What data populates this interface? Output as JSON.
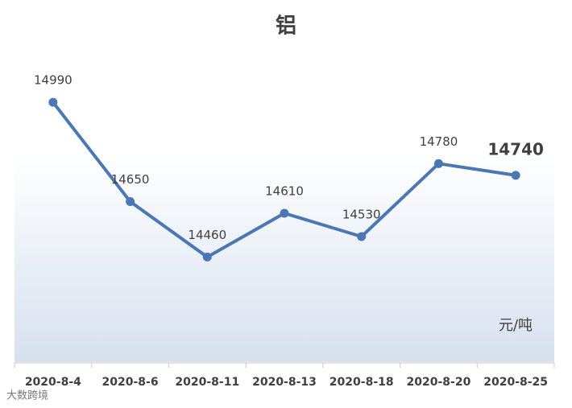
{
  "chart_data": {
    "type": "line",
    "title": "铝",
    "categories": [
      "2020-8-4",
      "2020-8-6",
      "2020-8-11",
      "2020-8-13",
      "2020-8-18",
      "2020-8-20",
      "2020-8-25"
    ],
    "series": [
      {
        "name": "铝",
        "color": "#4a78b5",
        "values": [
          14990,
          14650,
          14460,
          14610,
          14530,
          14780,
          14740
        ]
      }
    ],
    "ylim": [
      14100,
      15175
    ],
    "unit_label": "元/吨",
    "watermark": "大数跨境"
  }
}
